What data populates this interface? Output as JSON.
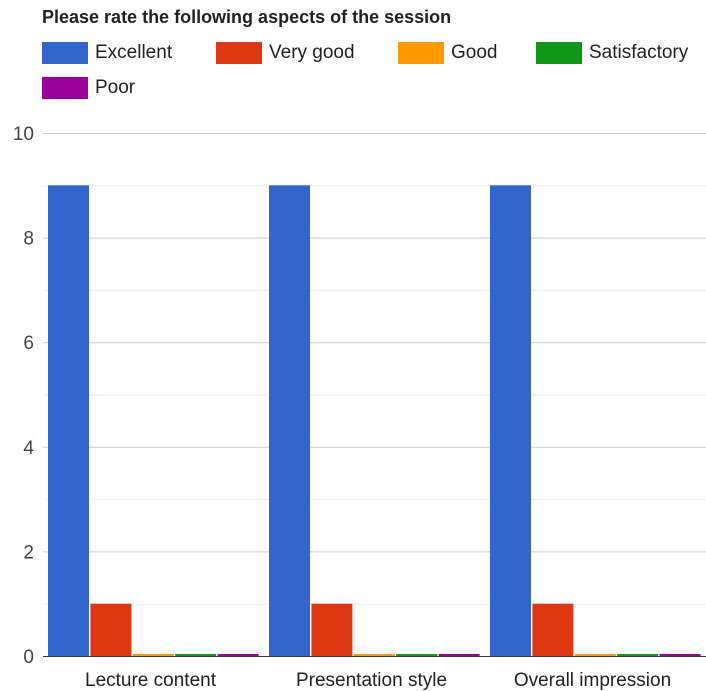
{
  "chart_data": {
    "type": "bar",
    "title": "Please rate the following aspects of the session",
    "categories": [
      "Lecture content",
      "Presentation style",
      "Overall impression"
    ],
    "series": [
      {
        "name": "Excellent",
        "color": "#3366cc",
        "values": [
          9,
          9,
          9
        ]
      },
      {
        "name": "Very good",
        "color": "#dc3912",
        "values": [
          1,
          1,
          1
        ]
      },
      {
        "name": "Good",
        "color": "#ff9900",
        "values": [
          0,
          0,
          0
        ]
      },
      {
        "name": "Satisfactory",
        "color": "#109618",
        "values": [
          0,
          0,
          0
        ]
      },
      {
        "name": "Poor",
        "color": "#990099",
        "values": [
          0,
          0,
          0
        ]
      }
    ],
    "ylim": [
      0,
      10
    ],
    "yticks": [
      0,
      2,
      4,
      6,
      8,
      10
    ],
    "minor_gridlines": [
      1,
      3,
      5,
      7,
      9
    ],
    "grid": true,
    "legend": "top",
    "xlabel": "",
    "ylabel": ""
  }
}
